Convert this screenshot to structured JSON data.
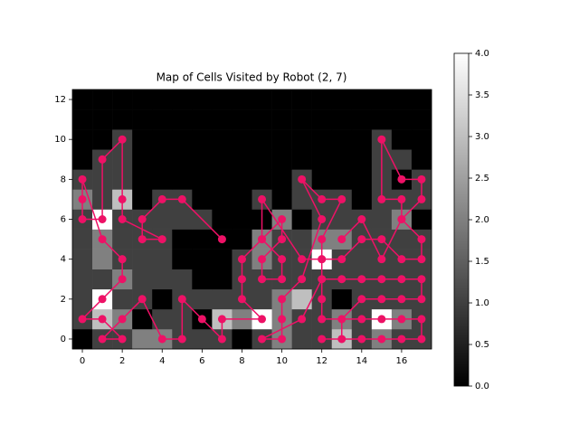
{
  "chart_data": {
    "type": "heatmap",
    "title": "Map of Cells Visited by Robot (2, 7)",
    "cmap": "gray",
    "xlim": [
      -0.5,
      17.5
    ],
    "ylim": [
      -0.5,
      12.5
    ],
    "xticks": [
      0,
      2,
      4,
      6,
      8,
      10,
      12,
      14,
      16
    ],
    "yticks": [
      0,
      2,
      4,
      6,
      8,
      10,
      12
    ],
    "values": [
      [
        0,
        1,
        1,
        2,
        2,
        1,
        1,
        1,
        0,
        1,
        2,
        1,
        1,
        3,
        1,
        2,
        1,
        1
      ],
      [
        1,
        3,
        2,
        0,
        1,
        1,
        0,
        3,
        2,
        4,
        2,
        1,
        1,
        2,
        1,
        4,
        2,
        1
      ],
      [
        1,
        4,
        1,
        1,
        0,
        1,
        1,
        1,
        1,
        1,
        2,
        3,
        1,
        0,
        1,
        1,
        1,
        1
      ],
      [
        1,
        1,
        2,
        1,
        1,
        1,
        0,
        0,
        1,
        1,
        1,
        1,
        1,
        1,
        1,
        1,
        1,
        1
      ],
      [
        1,
        2,
        1,
        1,
        1,
        0,
        0,
        0,
        1,
        2,
        1,
        1,
        4,
        1,
        1,
        1,
        1,
        1
      ],
      [
        1,
        2,
        1,
        1,
        1,
        0,
        0,
        0,
        0,
        2,
        1,
        1,
        2,
        2,
        1,
        1,
        1,
        1
      ],
      [
        1,
        4,
        1,
        1,
        1,
        1,
        1,
        0,
        0,
        0,
        2,
        0,
        1,
        1,
        1,
        1,
        2,
        0
      ],
      [
        2,
        1,
        3,
        0,
        1,
        1,
        0,
        0,
        0,
        1,
        0,
        1,
        1,
        1,
        0,
        1,
        1,
        1
      ],
      [
        1,
        1,
        1,
        0,
        0,
        0,
        0,
        0,
        0,
        0,
        0,
        1,
        0,
        0,
        0,
        1,
        0,
        1
      ],
      [
        0,
        1,
        1,
        0,
        0,
        0,
        0,
        0,
        0,
        0,
        0,
        0,
        0,
        0,
        0,
        1,
        1,
        0
      ],
      [
        0,
        0,
        1,
        0,
        0,
        0,
        0,
        0,
        0,
        0,
        0,
        0,
        0,
        0,
        0,
        1,
        0,
        0
      ],
      [
        0,
        0,
        0,
        0,
        0,
        0,
        0,
        0,
        0,
        0,
        0,
        0,
        0,
        0,
        0,
        0,
        0,
        0
      ],
      [
        0,
        0,
        0,
        0,
        0,
        0,
        0,
        0,
        0,
        0,
        0,
        0,
        0,
        0,
        0,
        0,
        0,
        0
      ]
    ],
    "colorbar": {
      "lim": [
        0,
        4
      ],
      "ticks": [
        {
          "value": 0,
          "label": "0.0"
        },
        {
          "value": 0.5,
          "label": "0.5"
        },
        {
          "value": 1,
          "label": "1.0"
        },
        {
          "value": 1.5,
          "label": "1.5"
        },
        {
          "value": 2,
          "label": "2.0"
        },
        {
          "value": 2.5,
          "label": "2.5"
        },
        {
          "value": 3,
          "label": "3.0"
        },
        {
          "value": 3.5,
          "label": "3.5"
        },
        {
          "value": 4,
          "label": "4.0"
        }
      ]
    },
    "path": {
      "color": "#ee1166",
      "x": [
        7,
        5,
        4,
        3,
        3,
        4,
        2,
        2,
        2,
        1,
        1,
        0,
        0,
        0,
        1,
        2,
        2,
        1,
        0,
        1,
        2,
        1,
        2,
        3,
        4,
        5,
        5,
        6,
        7,
        7,
        9,
        8,
        8,
        8,
        9,
        10,
        10,
        9,
        9,
        10,
        10,
        9,
        9,
        11,
        12,
        12,
        13,
        12,
        11,
        12,
        11,
        10,
        10,
        10,
        9,
        11,
        12,
        13,
        14,
        15,
        16,
        17,
        17,
        16,
        15,
        14,
        13,
        13,
        12,
        14,
        15,
        16,
        17,
        17,
        16,
        15,
        14,
        12,
        12,
        12,
        13,
        14,
        15,
        16,
        17,
        17,
        16,
        17,
        17,
        16,
        15,
        15,
        16,
        16,
        15,
        14,
        13
      ],
      "y": [
        5,
        7,
        7,
        6,
        5,
        5,
        6,
        7,
        10,
        9,
        6,
        6,
        7,
        8,
        5,
        4,
        3,
        2,
        1,
        1,
        0,
        0,
        1,
        2,
        0,
        0,
        2,
        1,
        0,
        1,
        1,
        2,
        3,
        4,
        5,
        6,
        5,
        4,
        3,
        3,
        4,
        5,
        7,
        4,
        4,
        5,
        7,
        7,
        8,
        6,
        3,
        2,
        1,
        0,
        0,
        1,
        3,
        3,
        3,
        3,
        3,
        3,
        2,
        2,
        2,
        2,
        1,
        0,
        0,
        0,
        0,
        0,
        0,
        1,
        1,
        1,
        1,
        1,
        2,
        4,
        4,
        5,
        5,
        4,
        4,
        5,
        6,
        7,
        8,
        8,
        10,
        7,
        7,
        6,
        4,
        6,
        5
      ]
    }
  }
}
